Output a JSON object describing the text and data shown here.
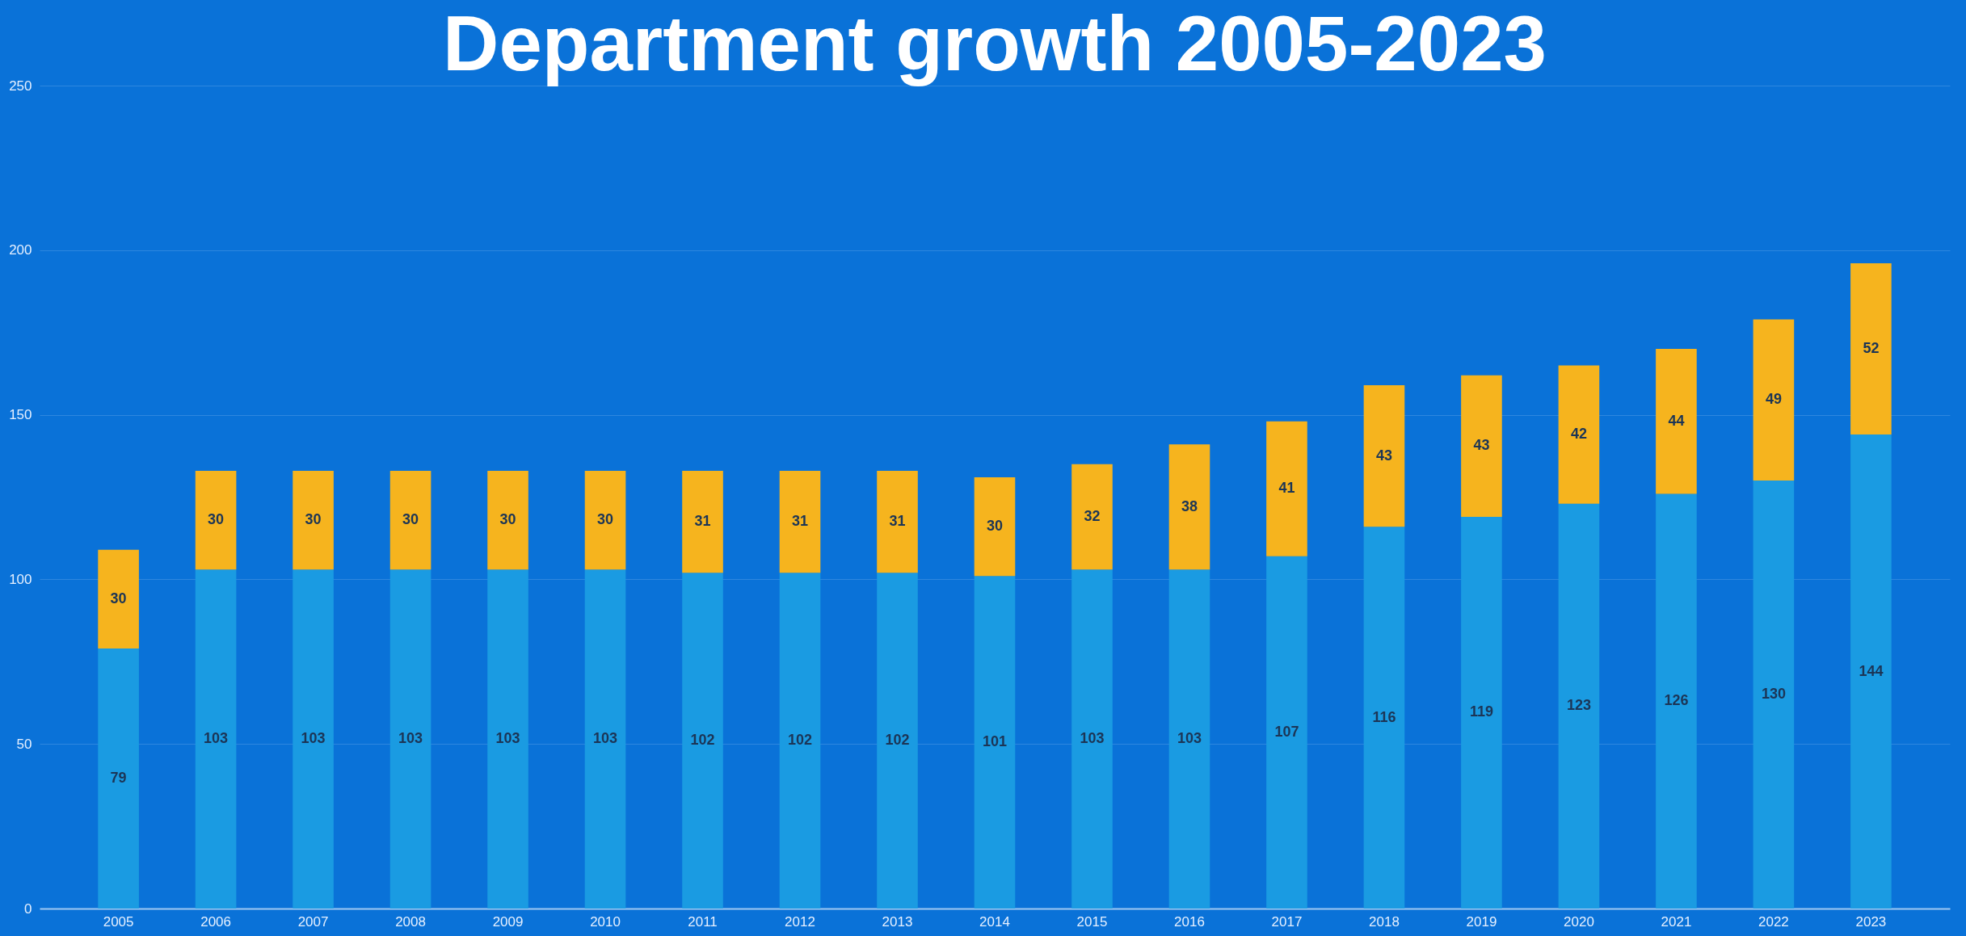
{
  "chart_data": {
    "type": "bar",
    "title": "Department growth 2005-2023",
    "stacked": true,
    "data_labels": true,
    "grid": "y",
    "categories": [
      "2005",
      "2006",
      "2007",
      "2008",
      "2009",
      "2010",
      "2011",
      "2012",
      "2013",
      "2014",
      "2015",
      "2016",
      "2017",
      "2018",
      "2019",
      "2020",
      "2021",
      "2022",
      "2023"
    ],
    "series": [
      {
        "color": "#1a9be2",
        "values": [
          79,
          103,
          103,
          103,
          103,
          103,
          102,
          102,
          102,
          101,
          103,
          103,
          107,
          116,
          119,
          123,
          126,
          130,
          144
        ]
      },
      {
        "color": "#f6b41e",
        "values": [
          30,
          30,
          30,
          30,
          30,
          30,
          31,
          31,
          31,
          30,
          32,
          38,
          41,
          43,
          43,
          42,
          44,
          49,
          52
        ]
      }
    ],
    "ylim": [
      0,
      250
    ],
    "yticks": [
      0,
      50,
      100,
      150,
      200,
      250
    ]
  }
}
